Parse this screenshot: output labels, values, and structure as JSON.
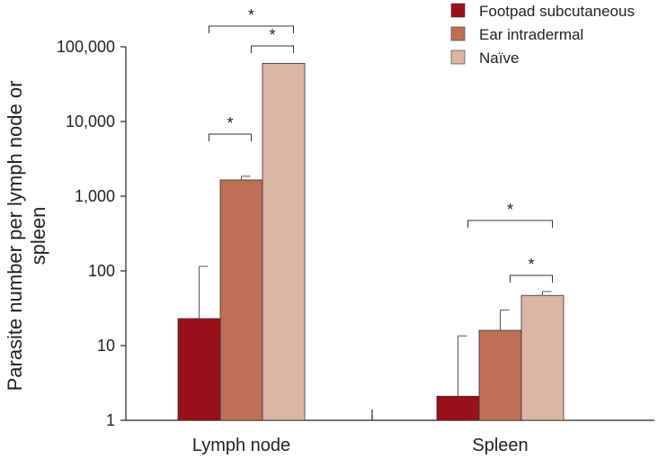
{
  "chart_data": {
    "type": "bar",
    "scale": "log",
    "ylabel_lines": [
      "Parasite number per lymph node or",
      "spleen"
    ],
    "ylim": [
      1,
      100000
    ],
    "yticks": [
      {
        "value": 1,
        "label": "1"
      },
      {
        "value": 10,
        "label": "10"
      },
      {
        "value": 100,
        "label": "100"
      },
      {
        "value": 1000,
        "label": "1,000"
      },
      {
        "value": 10000,
        "label": "10,000"
      },
      {
        "value": 100000,
        "label": "100,000"
      }
    ],
    "categories": [
      "Lymph node",
      "Spleen"
    ],
    "series": [
      {
        "name": "Footpad subcutaneous",
        "color": "#9b1119",
        "values": [
          23,
          2.1
        ],
        "errors": [
          115,
          13.5
        ]
      },
      {
        "name": "Ear intradermal",
        "color": "#bd7055",
        "values": [
          1650,
          16
        ],
        "errors": [
          1850,
          30
        ]
      },
      {
        "name": "Naïve",
        "color": "#dcb5a3",
        "values": [
          60000,
          47
        ],
        "errors": [
          60000,
          53
        ]
      }
    ],
    "significance": [
      {
        "category": 0,
        "from": 0,
        "to": 2,
        "label": "*"
      },
      {
        "category": 0,
        "from": 1,
        "to": 2,
        "label": "*"
      },
      {
        "category": 0,
        "from": 0,
        "to": 1,
        "label": "*"
      },
      {
        "category": 1,
        "from": 0,
        "to": 2,
        "label": "*"
      },
      {
        "category": 1,
        "from": 1,
        "to": 2,
        "label": "*"
      }
    ]
  }
}
